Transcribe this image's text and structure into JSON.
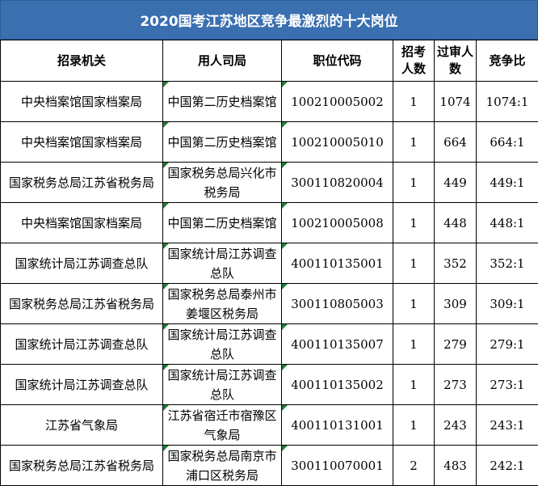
{
  "title": "2020国考江苏地区竞争最激烈的十大岗位",
  "headers": {
    "org": "招录机关",
    "unit": "用人司局",
    "code": "职位代码",
    "num": "招考人数",
    "passed": "过审人数",
    "ratio": "竞争比"
  },
  "rows": [
    {
      "org": "中央档案馆国家档案局",
      "unit": "中国第二历史档案馆",
      "code": "100210005002",
      "num": "1",
      "passed": "1074",
      "ratio": "1074:1"
    },
    {
      "org": "中央档案馆国家档案局",
      "unit": "中国第二历史档案馆",
      "code": "100210005010",
      "num": "1",
      "passed": "664",
      "ratio": "664:1"
    },
    {
      "org": "国家税务总局江苏省税务局",
      "unit": "国家税务总局兴化市税务局",
      "code": "300110820004",
      "num": "1",
      "passed": "449",
      "ratio": "449:1"
    },
    {
      "org": "中央档案馆国家档案局",
      "unit": "中国第二历史档案馆",
      "code": "100210005008",
      "num": "1",
      "passed": "448",
      "ratio": "448:1"
    },
    {
      "org": "国家统计局江苏调查总队",
      "unit": "国家统计局江苏调查总队",
      "code": "400110135001",
      "num": "1",
      "passed": "352",
      "ratio": "352:1"
    },
    {
      "org": "国家税务总局江苏省税务局",
      "unit": "国家税务总局泰州市姜堰区税务局",
      "code": "300110805003",
      "num": "1",
      "passed": "309",
      "ratio": "309:1"
    },
    {
      "org": "国家统计局江苏调查总队",
      "unit": "国家统计局江苏调查总队",
      "code": "400110135007",
      "num": "1",
      "passed": "279",
      "ratio": "279:1"
    },
    {
      "org": "国家统计局江苏调查总队",
      "unit": "国家统计局江苏调查总队",
      "code": "400110135002",
      "num": "1",
      "passed": "273",
      "ratio": "273:1"
    },
    {
      "org": "江苏省气象局",
      "unit": "江苏省宿迁市宿豫区气象局",
      "code": "400110131001",
      "num": "1",
      "passed": "243",
      "ratio": "243:1"
    },
    {
      "org": "国家税务总局江苏省税务局",
      "unit": "国家税务总局南京市浦口区税务局",
      "code": "300110070001",
      "num": "2",
      "passed": "483",
      "ratio": "242:1"
    }
  ]
}
